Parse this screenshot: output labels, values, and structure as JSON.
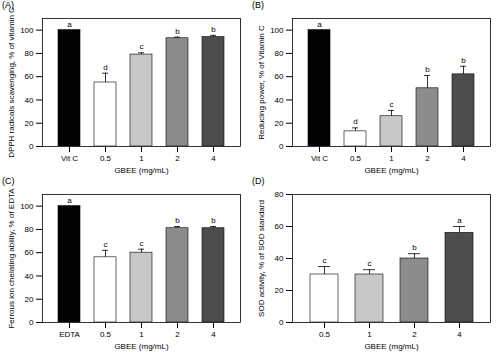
{
  "chart_data": [
    {
      "type": "bar",
      "title": "(A)",
      "x_label": "GBEE (mg/mL)",
      "y_label": "DPPH radicals scavenging, % of vitamin C",
      "categories": [
        "Vit C",
        "0.5",
        "1",
        "2",
        "4"
      ],
      "values": [
        100,
        55,
        79,
        93,
        94
      ],
      "errors": [
        0,
        8,
        1.5,
        1,
        1.5
      ],
      "annotations": [
        "a",
        "d",
        "c",
        "b",
        "b"
      ],
      "colors": [
        "#000000",
        "#ffffff",
        "#c8c8c8",
        "#8c8c8c",
        "#4d4d4d"
      ],
      "ylim": [
        0,
        110
      ],
      "yticks": [
        0,
        20,
        40,
        60,
        80,
        100
      ]
    },
    {
      "type": "bar",
      "title": "(B)",
      "x_label": "GBEE (mg/mL)",
      "y_label": "Reducing power, % of Vitamin C",
      "categories": [
        "Vit C",
        "0.5",
        "1",
        "2",
        "4"
      ],
      "values": [
        100,
        13,
        26,
        50,
        62
      ],
      "errors": [
        0,
        3,
        5,
        11,
        7
      ],
      "annotations": [
        "a",
        "d",
        "c",
        "b",
        "b"
      ],
      "colors": [
        "#000000",
        "#ffffff",
        "#c8c8c8",
        "#8c8c8c",
        "#4d4d4d"
      ],
      "ylim": [
        0,
        110
      ],
      "yticks": [
        0,
        20,
        40,
        60,
        80,
        100
      ]
    },
    {
      "type": "bar",
      "title": "(C)",
      "x_label": "GBEE (mg/mL)",
      "y_label": "Ferrous ion chelating ability, % of EDTA",
      "categories": [
        "EDTA",
        "0.5",
        "1",
        "2",
        "4"
      ],
      "values": [
        100,
        56,
        60,
        81,
        81
      ],
      "errors": [
        0,
        6,
        3,
        1.5,
        1.5
      ],
      "annotations": [
        "a",
        "c",
        "c",
        "b",
        "b"
      ],
      "colors": [
        "#000000",
        "#ffffff",
        "#c8c8c8",
        "#8c8c8c",
        "#4d4d4d"
      ],
      "ylim": [
        0,
        110
      ],
      "yticks": [
        0,
        20,
        40,
        60,
        80,
        100
      ]
    },
    {
      "type": "bar",
      "title": "(D)",
      "x_label": "GBEE (mg/mL)",
      "y_label": "SOD activity, % of SOD standard",
      "categories": [
        "0.5",
        "1",
        "2",
        "4"
      ],
      "values": [
        30,
        30,
        40,
        56
      ],
      "errors": [
        5,
        3,
        3,
        4
      ],
      "annotations": [
        "c",
        "c",
        "b",
        "a"
      ],
      "colors": [
        "#ffffff",
        "#c8c8c8",
        "#8c8c8c",
        "#4d4d4d"
      ],
      "ylim": [
        0,
        80
      ],
      "yticks": [
        0,
        20,
        40,
        60,
        80
      ]
    }
  ]
}
